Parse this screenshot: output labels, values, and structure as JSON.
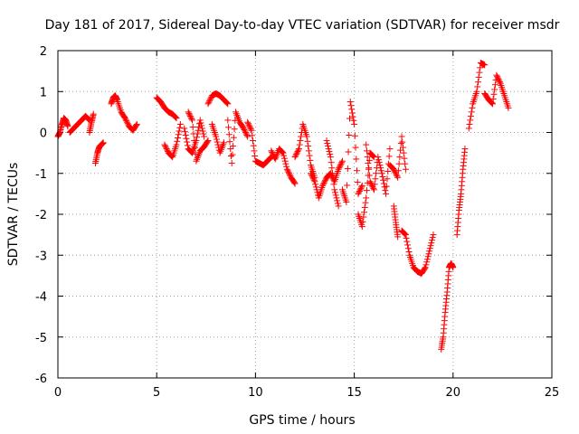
{
  "chart_data": {
    "type": "scatter",
    "title": "Day 181 of 2017, Sidereal Day-to-day VTEC variation (SDTVAR) for receiver msdr",
    "xlabel": "GPS time / hours",
    "ylabel": "SDTVAR / TECUs",
    "xlim": [
      0,
      25
    ],
    "ylim": [
      -6,
      2
    ],
    "grid": true,
    "marker": "plus",
    "color": "#ff0000",
    "x_ticks": [
      "0",
      "5",
      "10",
      "15",
      "20",
      "25"
    ],
    "y_ticks": [
      "2",
      "1",
      "0",
      "-1",
      "-2",
      "-3",
      "-4",
      "-5",
      "-6"
    ],
    "segments": [
      {
        "x": [
          0.0,
          0.1,
          0.2,
          0.3,
          0.4,
          0.5
        ],
        "y": [
          -0.1,
          0.0,
          0.2,
          0.35,
          0.3,
          0.15
        ]
      },
      {
        "x": [
          0.6,
          0.8,
          1.0,
          1.2,
          1.4,
          1.6
        ],
        "y": [
          0.0,
          0.1,
          0.2,
          0.3,
          0.4,
          0.3
        ]
      },
      {
        "x": [
          1.6,
          1.7,
          1.8
        ],
        "y": [
          0.0,
          0.25,
          0.45
        ]
      },
      {
        "x": [
          1.9,
          2.0,
          2.1,
          2.2,
          2.3
        ],
        "y": [
          -0.75,
          -0.5,
          -0.35,
          -0.3,
          -0.25
        ]
      },
      {
        "x": [
          2.7,
          2.8,
          2.9,
          3.0,
          3.2,
          3.4,
          3.6,
          3.8,
          4.0
        ],
        "y": [
          0.7,
          0.85,
          0.9,
          0.8,
          0.5,
          0.35,
          0.15,
          0.05,
          0.2
        ]
      },
      {
        "x": [
          5.0,
          5.2,
          5.4,
          5.6,
          5.8,
          6.0
        ],
        "y": [
          0.85,
          0.75,
          0.6,
          0.5,
          0.45,
          0.35
        ]
      },
      {
        "x": [
          5.4,
          5.6,
          5.8,
          6.0,
          6.2
        ],
        "y": [
          -0.3,
          -0.5,
          -0.6,
          -0.3,
          0.2
        ]
      },
      {
        "x": [
          6.4,
          6.6,
          6.8,
          7.0,
          7.2,
          7.4
        ],
        "y": [
          0.1,
          -0.4,
          -0.5,
          -0.2,
          0.3,
          -0.1
        ]
      },
      {
        "x": [
          6.6,
          6.8,
          7.0,
          7.2,
          7.4,
          7.6
        ],
        "y": [
          0.5,
          0.3,
          -0.7,
          -0.45,
          -0.35,
          -0.2
        ]
      },
      {
        "x": [
          7.6,
          7.8,
          8.0,
          8.2,
          8.4,
          8.6
        ],
        "y": [
          0.7,
          0.9,
          0.95,
          0.9,
          0.8,
          0.7
        ]
      },
      {
        "x": [
          7.8,
          8.0,
          8.2,
          8.4
        ],
        "y": [
          0.2,
          -0.1,
          -0.5,
          -0.25
        ]
      },
      {
        "x": [
          8.6,
          8.8,
          9.0,
          9.2,
          9.4,
          9.6
        ],
        "y": [
          0.3,
          -0.75,
          0.5,
          0.25,
          0.1,
          -0.1
        ]
      },
      {
        "x": [
          9.6,
          9.8,
          10.0,
          10.2,
          10.4,
          10.6,
          10.8
        ],
        "y": [
          0.25,
          0.05,
          -0.7,
          -0.75,
          -0.8,
          -0.7,
          -0.6
        ]
      },
      {
        "x": [
          10.8,
          11.0,
          11.2,
          11.4,
          11.6,
          11.8,
          12.0
        ],
        "y": [
          -0.45,
          -0.65,
          -0.4,
          -0.5,
          -0.9,
          -1.1,
          -1.25
        ]
      },
      {
        "x": [
          12.0,
          12.2,
          12.4,
          12.6,
          12.8,
          13.0
        ],
        "y": [
          -0.6,
          -0.4,
          0.2,
          -0.1,
          -0.8,
          -1.1
        ]
      },
      {
        "x": [
          12.8,
          13.0,
          13.2,
          13.4,
          13.6,
          13.8,
          14.0,
          14.2,
          14.4
        ],
        "y": [
          -1.0,
          -1.2,
          -1.6,
          -1.3,
          -1.1,
          -1.0,
          -1.2,
          -0.9,
          -0.7
        ]
      },
      {
        "x": [
          13.6,
          13.8,
          14.0,
          14.2
        ],
        "y": [
          -0.2,
          -0.6,
          -1.4,
          -1.8
        ]
      },
      {
        "x": [
          14.4,
          14.6,
          14.8,
          15.0,
          15.2,
          15.4
        ],
        "y": [
          -1.4,
          -1.7,
          0.75,
          0.2,
          -1.5,
          -1.3
        ]
      },
      {
        "x": [
          15.2,
          15.4,
          15.6,
          15.8,
          16.0
        ],
        "y": [
          -2.0,
          -2.3,
          -1.6,
          -0.5,
          -0.6
        ]
      },
      {
        "x": [
          15.6,
          15.8,
          16.0,
          16.2,
          16.4,
          16.6,
          16.8
        ],
        "y": [
          -0.3,
          -1.2,
          -1.4,
          -0.6,
          -1.0,
          -1.5,
          -0.4
        ]
      },
      {
        "x": [
          16.8,
          17.0,
          17.2,
          17.4,
          17.6
        ],
        "y": [
          -0.8,
          -0.9,
          -1.1,
          -0.1,
          -0.9
        ]
      },
      {
        "x": [
          17.0,
          17.1,
          17.2
        ],
        "y": [
          -1.8,
          -2.2,
          -2.55
        ]
      },
      {
        "x": [
          17.4,
          17.6,
          17.8,
          18.0,
          18.2
        ],
        "y": [
          -2.4,
          -2.5,
          -3.0,
          -3.3,
          -3.4
        ]
      },
      {
        "x": [
          18.2,
          18.4,
          18.6,
          18.8,
          19.0
        ],
        "y": [
          -3.4,
          -3.45,
          -3.3,
          -2.9,
          -2.5
        ]
      },
      {
        "x": [
          19.4,
          19.5,
          19.6,
          19.7,
          19.8,
          19.9,
          20.0
        ],
        "y": [
          -5.3,
          -5.0,
          -4.4,
          -3.9,
          -3.3,
          -3.2,
          -3.3
        ]
      },
      {
        "x": [
          20.2,
          20.3,
          20.4,
          20.5,
          20.6
        ],
        "y": [
          -2.5,
          -1.9,
          -1.5,
          -0.9,
          -0.4
        ]
      },
      {
        "x": [
          20.8,
          21.0,
          21.2,
          21.4,
          21.6
        ],
        "y": [
          0.1,
          0.7,
          1.0,
          1.7,
          1.65
        ]
      },
      {
        "x": [
          21.6,
          21.8,
          22.0,
          22.2,
          22.4,
          22.6,
          22.8
        ],
        "y": [
          0.95,
          0.8,
          0.7,
          1.4,
          1.2,
          0.9,
          0.6
        ]
      }
    ]
  }
}
